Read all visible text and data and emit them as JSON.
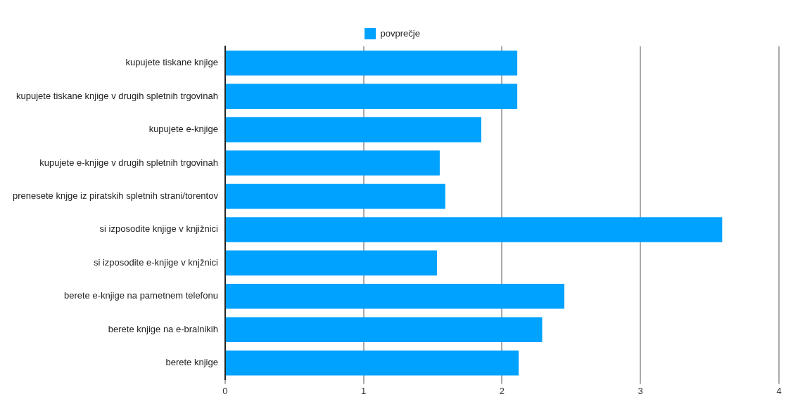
{
  "chart_data": {
    "type": "bar",
    "orientation": "horizontal",
    "categories": [
      "kupujete tiskane knjige",
      "kupujete tiskane knjige v drugih spletnih trgovinah",
      "kupujete e-knjige",
      "kupujete e-knjige v drugih spletnih trgovinah",
      "prenesete knjge iz piratskih spletnih strani/torentov",
      "si izposodite knjige v knjižnici",
      "si izposodite e-knjige v knjžnici",
      "berete e-knjige na pametnem telefonu",
      "berete knjige na e-bralnikih",
      "berete knjige"
    ],
    "series": [
      {
        "name": "povprečje",
        "color": "#00a2ff",
        "values": [
          2.11,
          2.11,
          1.85,
          1.55,
          1.59,
          3.59,
          1.53,
          2.45,
          2.29,
          2.12
        ]
      }
    ],
    "xlim": [
      0,
      4
    ],
    "xticks": [
      0,
      1,
      2,
      3,
      4
    ],
    "grid": "x",
    "legend": "top"
  }
}
